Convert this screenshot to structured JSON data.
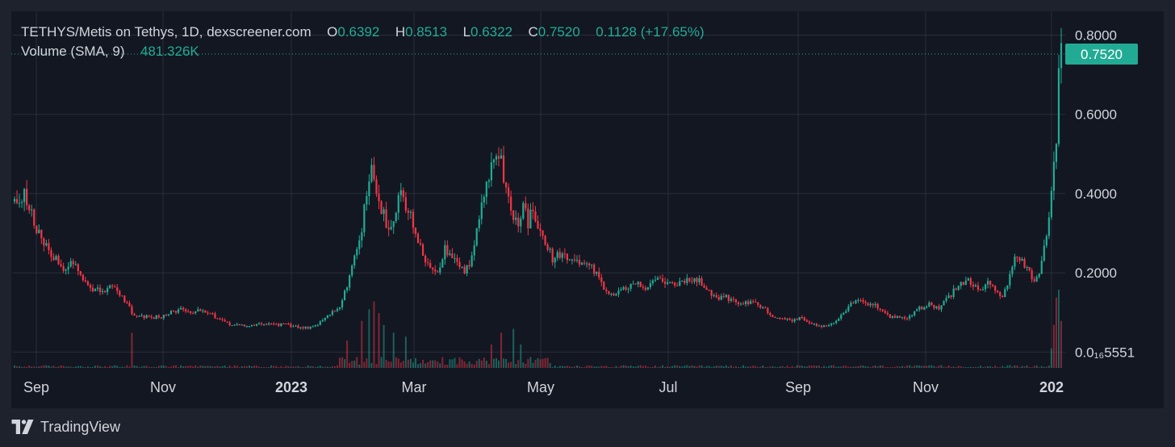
{
  "legend": {
    "symbol": "TETHYS/Metis on Tethys, 1D, dexscreener.com",
    "open_label": "O",
    "open": "0.6392",
    "high_label": "H",
    "high": "0.8513",
    "low_label": "L",
    "low": "0.6322",
    "close_label": "C",
    "close": "0.7520",
    "change": "0.1128 (+17.65%)",
    "volume_label": "Volume (SMA, 9)",
    "volume_value": "481.326K"
  },
  "brand": {
    "name": "TradingView"
  },
  "colors": {
    "background": "#131722",
    "frame": "#1e222d",
    "up": "#22ab94",
    "down": "#f23645",
    "grid": "#2a2e39",
    "text": "#d1d4dc"
  },
  "chart_data": {
    "type": "candlestick",
    "x_tick_labels": [
      "Sep",
      "Nov",
      "2023",
      "Mar",
      "May",
      "Jul",
      "Sep",
      "Nov",
      "202"
    ],
    "y_tick_labels": [
      "0.8000",
      "0.6000",
      "0.4000",
      "0.2000",
      "0.0₁₆5551"
    ],
    "y_ticks": [
      0.8,
      0.6,
      0.4,
      0.2,
      0.0
    ],
    "ylim": [
      -0.04,
      0.86
    ],
    "last_price": 0.752,
    "last_price_label": "0.7520",
    "price_path": [
      [
        0,
        0.38
      ],
      [
        4,
        0.4
      ],
      [
        8,
        0.33
      ],
      [
        12,
        0.28
      ],
      [
        16,
        0.24
      ],
      [
        20,
        0.21
      ],
      [
        24,
        0.22
      ],
      [
        28,
        0.18
      ],
      [
        32,
        0.16
      ],
      [
        36,
        0.15
      ],
      [
        40,
        0.17
      ],
      [
        44,
        0.14
      ],
      [
        48,
        0.1
      ],
      [
        52,
        0.09
      ],
      [
        56,
        0.085
      ],
      [
        60,
        0.09
      ],
      [
        64,
        0.1
      ],
      [
        68,
        0.11
      ],
      [
        72,
        0.1
      ],
      [
        76,
        0.11
      ],
      [
        80,
        0.1
      ],
      [
        84,
        0.08
      ],
      [
        88,
        0.07
      ],
      [
        92,
        0.068
      ],
      [
        96,
        0.066
      ],
      [
        100,
        0.07
      ],
      [
        104,
        0.072
      ],
      [
        108,
        0.07
      ],
      [
        112,
        0.068
      ],
      [
        116,
        0.064
      ],
      [
        120,
        0.062
      ],
      [
        124,
        0.07
      ],
      [
        128,
        0.09
      ],
      [
        132,
        0.11
      ],
      [
        134,
        0.13
      ],
      [
        136,
        0.17
      ],
      [
        138,
        0.22
      ],
      [
        140,
        0.26
      ],
      [
        142,
        0.32
      ],
      [
        144,
        0.4
      ],
      [
        146,
        0.46
      ],
      [
        148,
        0.4
      ],
      [
        150,
        0.36
      ],
      [
        152,
        0.33
      ],
      [
        154,
        0.32
      ],
      [
        156,
        0.36
      ],
      [
        158,
        0.41
      ],
      [
        160,
        0.38
      ],
      [
        162,
        0.34
      ],
      [
        164,
        0.3
      ],
      [
        166,
        0.26
      ],
      [
        168,
        0.23
      ],
      [
        170,
        0.21
      ],
      [
        172,
        0.2
      ],
      [
        174,
        0.22
      ],
      [
        176,
        0.27
      ],
      [
        178,
        0.24
      ],
      [
        180,
        0.23
      ],
      [
        182,
        0.22
      ],
      [
        184,
        0.2
      ],
      [
        186,
        0.23
      ],
      [
        188,
        0.27
      ],
      [
        190,
        0.34
      ],
      [
        192,
        0.4
      ],
      [
        194,
        0.45
      ],
      [
        196,
        0.48
      ],
      [
        198,
        0.5
      ],
      [
        200,
        0.44
      ],
      [
        202,
        0.38
      ],
      [
        204,
        0.34
      ],
      [
        206,
        0.31
      ],
      [
        208,
        0.37
      ],
      [
        210,
        0.33
      ],
      [
        212,
        0.35
      ],
      [
        214,
        0.33
      ],
      [
        216,
        0.3
      ],
      [
        218,
        0.26
      ],
      [
        220,
        0.24
      ],
      [
        224,
        0.25
      ],
      [
        228,
        0.23
      ],
      [
        232,
        0.22
      ],
      [
        236,
        0.21
      ],
      [
        240,
        0.18
      ],
      [
        242,
        0.15
      ],
      [
        244,
        0.14
      ],
      [
        246,
        0.15
      ],
      [
        250,
        0.16
      ],
      [
        254,
        0.17
      ],
      [
        258,
        0.16
      ],
      [
        262,
        0.19
      ],
      [
        266,
        0.18
      ],
      [
        270,
        0.17
      ],
      [
        274,
        0.18
      ],
      [
        278,
        0.19
      ],
      [
        282,
        0.17
      ],
      [
        286,
        0.14
      ],
      [
        290,
        0.14
      ],
      [
        294,
        0.13
      ],
      [
        298,
        0.12
      ],
      [
        302,
        0.13
      ],
      [
        306,
        0.11
      ],
      [
        310,
        0.09
      ],
      [
        314,
        0.085
      ],
      [
        318,
        0.08
      ],
      [
        322,
        0.085
      ],
      [
        326,
        0.07
      ],
      [
        330,
        0.066
      ],
      [
        334,
        0.07
      ],
      [
        338,
        0.09
      ],
      [
        342,
        0.12
      ],
      [
        346,
        0.13
      ],
      [
        350,
        0.12
      ],
      [
        354,
        0.11
      ],
      [
        358,
        0.09
      ],
      [
        362,
        0.085
      ],
      [
        366,
        0.09
      ],
      [
        370,
        0.11
      ],
      [
        374,
        0.12
      ],
      [
        378,
        0.11
      ],
      [
        382,
        0.14
      ],
      [
        386,
        0.17
      ],
      [
        390,
        0.18
      ],
      [
        394,
        0.16
      ],
      [
        398,
        0.17
      ],
      [
        402,
        0.15
      ],
      [
        404,
        0.14
      ],
      [
        406,
        0.17
      ],
      [
        408,
        0.22
      ],
      [
        410,
        0.25
      ],
      [
        412,
        0.23
      ],
      [
        414,
        0.21
      ],
      [
        416,
        0.19
      ],
      [
        418,
        0.18
      ],
      [
        420,
        0.24
      ],
      [
        422,
        0.3
      ],
      [
        424,
        0.4
      ],
      [
        426,
        0.55
      ],
      [
        427,
        0.72
      ],
      [
        428,
        0.75
      ]
    ],
    "volume_spikes": [
      [
        48,
        0.45
      ],
      [
        136,
        0.35
      ],
      [
        142,
        0.6
      ],
      [
        145,
        0.75
      ],
      [
        147,
        0.85
      ],
      [
        149,
        0.7
      ],
      [
        151,
        0.55
      ],
      [
        155,
        0.45
      ],
      [
        160,
        0.4
      ],
      [
        195,
        0.3
      ],
      [
        199,
        0.45
      ],
      [
        204,
        0.5
      ],
      [
        207,
        0.3
      ],
      [
        424,
        0.25
      ],
      [
        425,
        0.55
      ],
      [
        426,
        0.9
      ],
      [
        427,
        1.0
      ],
      [
        428,
        0.6
      ]
    ]
  }
}
